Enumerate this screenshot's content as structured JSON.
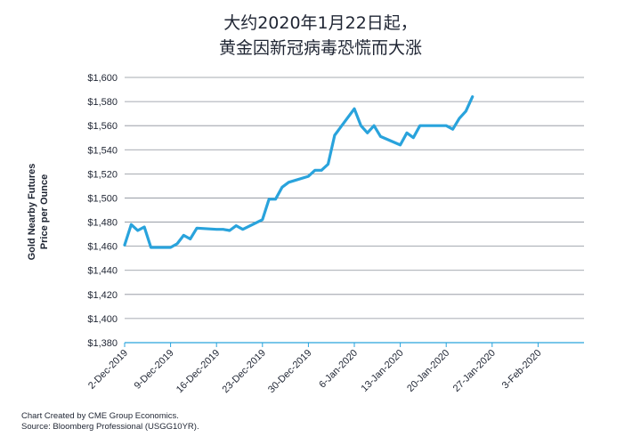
{
  "title": {
    "line1": "大约2020年1月22日起，",
    "line2": "黄金因新冠病毒恐慌而大涨"
  },
  "footer": {
    "line1": "Chart Created by CME Group Economics.",
    "line2": "Source:  Bloomberg Professional (USGG10YR)."
  },
  "chart_data": {
    "type": "line",
    "title": "大约2020年1月22日起，黄金因新冠病毒恐慌而大涨",
    "ylabel": [
      "Gold Nearby Futures",
      "Price per Ounce"
    ],
    "xlabel": "",
    "ylim": [
      1380,
      1600
    ],
    "yticks": [
      1380,
      1400,
      1420,
      1440,
      1460,
      1480,
      1500,
      1520,
      1540,
      1560,
      1580,
      1600
    ],
    "ytick_labels": [
      "$1,380",
      "$1,400",
      "$1,420",
      "$1,440",
      "$1,460",
      "$1,480",
      "$1,500",
      "$1,520",
      "$1,540",
      "$1,560",
      "$1,580",
      "$1,600"
    ],
    "xlim": [
      "2019-12-02",
      "2020-02-10"
    ],
    "xticks": [
      "2019-12-02",
      "2019-12-09",
      "2019-12-16",
      "2019-12-23",
      "2019-12-30",
      "2020-01-06",
      "2020-01-13",
      "2020-01-20",
      "2020-01-27",
      "2020-02-03"
    ],
    "xtick_labels": [
      "2-Dec-2019",
      "9-Dec-2019",
      "16-Dec-2019",
      "23-Dec-2019",
      "30-Dec-2019",
      "6-Jan-2020",
      "13-Jan-2020",
      "20-Jan-2020",
      "27-Jan-2020",
      "3-Feb-2020"
    ],
    "grid": "horizontal",
    "line_color": "#29a3dc",
    "series": [
      {
        "x": [
          "2019-12-02",
          "2019-12-03",
          "2019-12-04",
          "2019-12-05",
          "2019-12-06",
          "2019-12-07",
          "2019-12-09",
          "2019-12-10",
          "2019-12-11",
          "2019-12-12",
          "2019-12-13",
          "2019-12-16",
          "2019-12-17",
          "2019-12-18",
          "2019-12-19",
          "2019-12-20",
          "2019-12-23",
          "2019-12-24",
          "2019-12-25",
          "2019-12-26",
          "2019-12-27",
          "2019-12-30",
          "2019-12-31",
          "2020-01-01",
          "2020-01-02",
          "2020-01-03",
          "2020-01-06",
          "2020-01-07",
          "2020-01-08",
          "2020-01-09",
          "2020-01-10",
          "2020-01-13",
          "2020-01-14",
          "2020-01-15",
          "2020-01-16",
          "2020-01-17",
          "2020-01-20",
          "2020-01-21",
          "2020-01-22",
          "2020-01-23",
          "2020-01-24"
        ],
        "y": [
          1461,
          1478,
          1473,
          1476,
          1459,
          1459,
          1459,
          1462,
          1469,
          1466,
          1475,
          1474,
          1474,
          1473,
          1477,
          1474,
          1482,
          1499,
          1499,
          1509,
          1513,
          1518,
          1523,
          1523,
          1528,
          1552,
          1574,
          1560,
          1554,
          1560,
          1551,
          1544,
          1554,
          1550,
          1560,
          1560,
          1560,
          1557,
          1566,
          1572,
          1584
        ]
      }
    ]
  }
}
